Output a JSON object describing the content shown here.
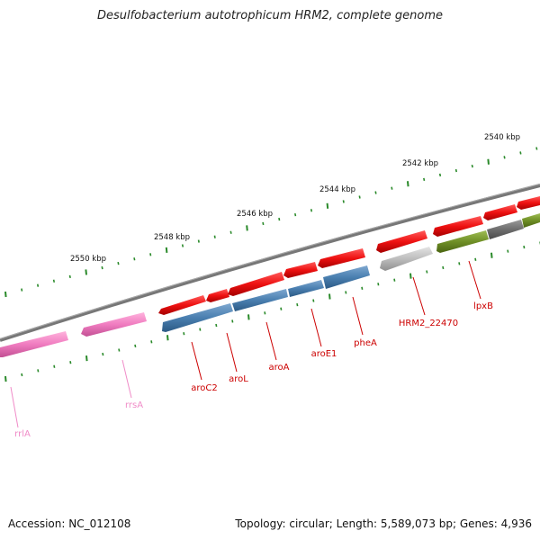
{
  "title": "Desulfobacterium autotrophicum HRM2, complete genome",
  "footer": {
    "accession": "Accession: NC_012108",
    "summary": "Topology: circular; Length: 5,589,073 bp; Genes: 4,936"
  },
  "colors": {
    "backbone": "#7a7a7a",
    "tick": "#2a8a2a",
    "red_gene": "#ee1111",
    "blue_gene": "#4a7fb0",
    "pink_gene": "#f06eb8",
    "grey_gene": "#bdbdbd",
    "olive_gene": "#6f8f26",
    "dark_grey_gene": "#6e6e6e",
    "red_label": "#cc0000",
    "pink_label": "#f08cc8"
  },
  "scale_labels": [
    "2540 kbp",
    "2542 kbp",
    "2544 kbp",
    "2546 kbp",
    "2548 kbp",
    "2550 kbp"
  ],
  "gene_labels": [
    "rrlA",
    "rrsA",
    "aroC2",
    "aroL",
    "aroA",
    "aroE1",
    "pheA",
    "HRM2_22470",
    "lpxB"
  ]
}
